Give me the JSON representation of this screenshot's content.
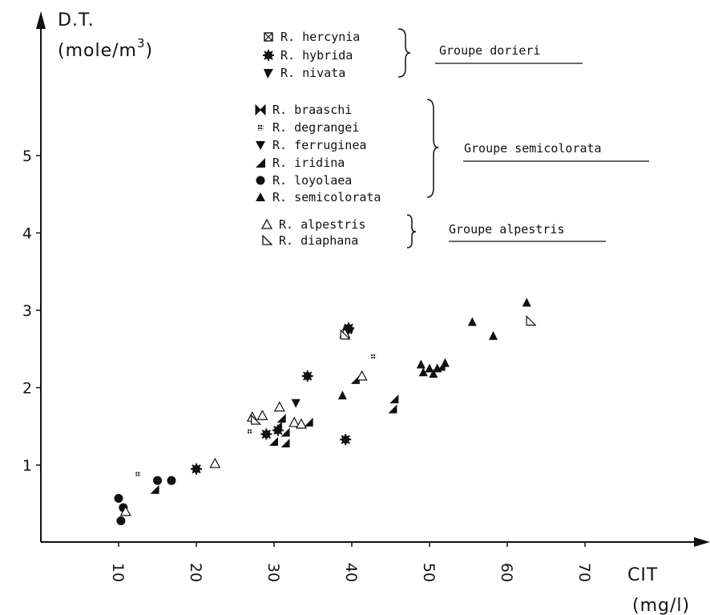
{
  "chart_data": {
    "type": "scatter",
    "title": "",
    "ylabel_line1": "D.T.",
    "ylabel_line2_prefix": "(mole/m",
    "ylabel_line2_sup": "3",
    "ylabel_line2_suffix": ")",
    "xlabel_line1": "CIT",
    "xlabel_line2": "(mg/l)",
    "xlim": [
      0,
      78
    ],
    "ylim": [
      -0.55,
      6.6
    ],
    "x_ticks": [
      10,
      20,
      30,
      40,
      50,
      60,
      70
    ],
    "x_tick_labels": [
      "10",
      "20",
      "30",
      "40",
      "50",
      "60",
      "70"
    ],
    "y_ticks": [
      1,
      2,
      3,
      4,
      5
    ],
    "y_tick_labels": [
      "1",
      "2",
      "3",
      "4",
      "5"
    ],
    "grid": false,
    "legend_groups": [
      {
        "name": "Groupe dorieri",
        "entries": [
          {
            "label": "R. hercynia",
            "marker": "box-x"
          },
          {
            "label": "R. hybrida",
            "marker": "star"
          },
          {
            "label": "R. nivata",
            "marker": "tri-flag"
          }
        ]
      },
      {
        "name": "Groupe semicolorata",
        "entries": [
          {
            "label": "R. braaschi",
            "marker": "bowtie"
          },
          {
            "label": "R. degrangei",
            "marker": "hash"
          },
          {
            "label": "R. ferruginea",
            "marker": "tri-down"
          },
          {
            "label": "R. iridina",
            "marker": "half-tri"
          },
          {
            "label": "R. loyolaea",
            "marker": "circle"
          },
          {
            "label": "R. semicolorata",
            "marker": "tri-up"
          }
        ]
      },
      {
        "name": "Groupe alpestris",
        "entries": [
          {
            "label": "R. alpestris",
            "marker": "tri-open"
          },
          {
            "label": "R. diaphana",
            "marker": "right-tri-open"
          }
        ]
      }
    ],
    "series": [
      {
        "name": "R. hybrida",
        "marker": "star",
        "points": [
          [
            29,
            1.4
          ],
          [
            30.5,
            1.45
          ],
          [
            34.3,
            2.15
          ],
          [
            39.2,
            1.33
          ],
          [
            39.6,
            2.77
          ],
          [
            20,
            0.95
          ],
          [
            39.5,
            2.75
          ]
        ]
      },
      {
        "name": "R. loyolaea",
        "marker": "circle",
        "points": [
          [
            10,
            0.57
          ],
          [
            10.3,
            0.28
          ],
          [
            10.6,
            0.45
          ],
          [
            15,
            0.8
          ],
          [
            16.8,
            0.8
          ]
        ]
      },
      {
        "name": "R. iridina",
        "marker": "half-tri",
        "points": [
          [
            14.7,
            0.68
          ],
          [
            30,
            1.3
          ],
          [
            31.5,
            1.28
          ],
          [
            30.5,
            1.5
          ],
          [
            31,
            1.6
          ],
          [
            31.5,
            1.42
          ],
          [
            34.5,
            1.55
          ],
          [
            40.5,
            2.1
          ],
          [
            45.5,
            1.85
          ],
          [
            45.3,
            1.72
          ],
          [
            51.5,
            2.27
          ]
        ]
      },
      {
        "name": "R. semicolorata",
        "marker": "tri-up",
        "points": [
          [
            38.8,
            1.9
          ],
          [
            48.9,
            2.3
          ],
          [
            49.2,
            2.2
          ],
          [
            50,
            2.25
          ],
          [
            50.5,
            2.18
          ],
          [
            51,
            2.25
          ],
          [
            52,
            2.32
          ],
          [
            55.5,
            2.85
          ],
          [
            58.2,
            2.67
          ],
          [
            62.5,
            3.1
          ]
        ]
      },
      {
        "name": "R. ferruginea",
        "marker": "tri-down",
        "points": [
          [
            32.8,
            1.8
          ]
        ]
      },
      {
        "name": "R. degrangei",
        "marker": "hash",
        "points": [
          [
            12.5,
            0.88
          ],
          [
            26.9,
            1.43
          ],
          [
            42.8,
            2.4
          ]
        ]
      },
      {
        "name": "R. alpestris",
        "marker": "tri-open",
        "points": [
          [
            22.4,
            1.02
          ],
          [
            27.2,
            1.62
          ],
          [
            28.5,
            1.64
          ],
          [
            30.7,
            1.75
          ],
          [
            32.6,
            1.55
          ],
          [
            33.5,
            1.53
          ],
          [
            39.1,
            2.7
          ],
          [
            41.3,
            2.15
          ],
          [
            10.9,
            0.4
          ]
        ]
      },
      {
        "name": "R. diaphana",
        "marker": "right-tri-open",
        "points": [
          [
            27.6,
            1.58
          ],
          [
            39.1,
            2.68
          ],
          [
            63,
            2.86
          ]
        ]
      }
    ]
  }
}
